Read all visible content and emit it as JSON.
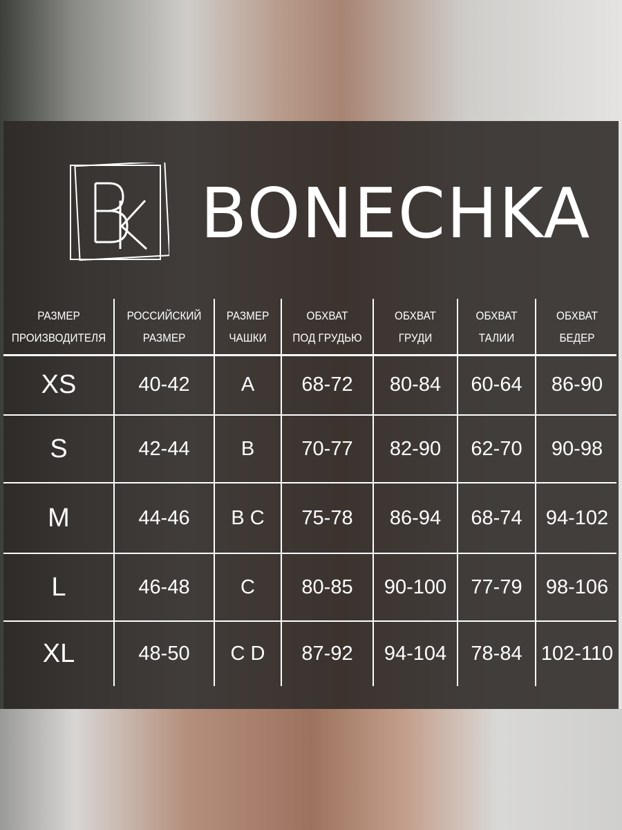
{
  "brand": {
    "name": "BONECHKA",
    "logo_monogram": "BK"
  },
  "table": {
    "headers": [
      [
        "РАЗМЕР",
        "ПРОИЗВОДИТЕЛЯ"
      ],
      [
        "РОССИЙСКИЙ",
        "РАЗМЕР"
      ],
      [
        "РАЗМЕР",
        "ЧАШКИ"
      ],
      [
        "ОБХВАТ",
        "ПОД ГРУДЬЮ"
      ],
      [
        "ОБХВАТ",
        "ГРУДИ"
      ],
      [
        "ОБХВАТ",
        "ТАЛИИ"
      ],
      [
        "ОБХВАТ",
        "БЕДЕР"
      ]
    ],
    "rows": [
      [
        "XS",
        "40-42",
        "A",
        "68-72",
        "80-84",
        "60-64",
        "86-90"
      ],
      [
        "S",
        "42-44",
        "B",
        "70-77",
        "82-90",
        "62-70",
        "90-98"
      ],
      [
        "M",
        "44-46",
        "B C",
        "75-78",
        "86-94",
        "68-74",
        "94-102"
      ],
      [
        "L",
        "46-48",
        "C",
        "80-85",
        "90-100",
        "77-79",
        "98-106"
      ],
      [
        "XL",
        "48-50",
        "C D",
        "87-92",
        "94-104",
        "78-84",
        "102-110"
      ]
    ]
  }
}
